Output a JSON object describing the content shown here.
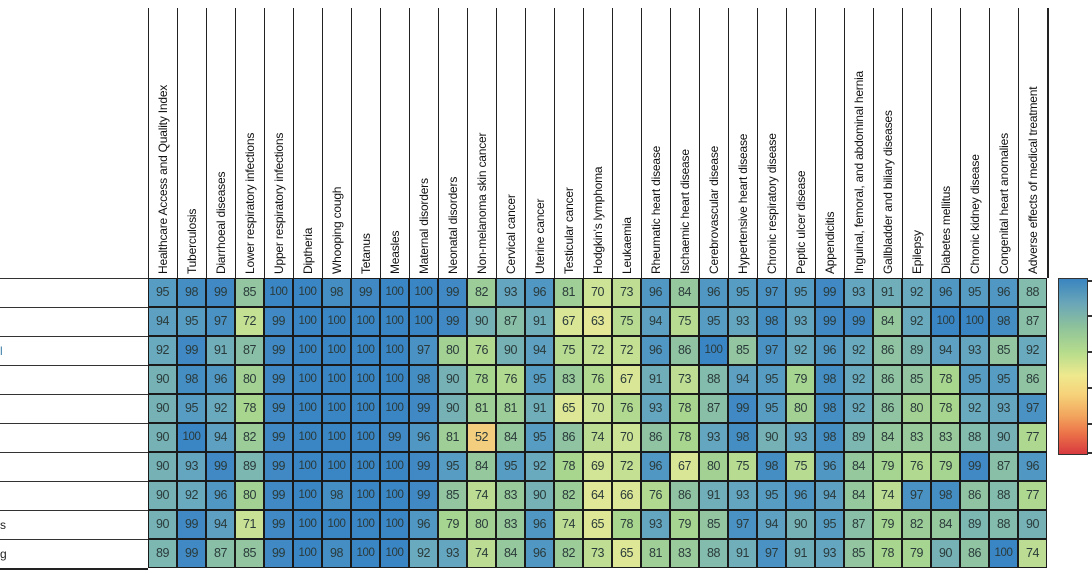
{
  "chart_data": {
    "type": "heatmap",
    "title": "",
    "columns": [
      "Healthcare Access and Quality Index",
      "Tuberculosis",
      "Diarrhoeal diseases",
      "Lower respiratory infections",
      "Upper respiratory infections",
      "Diptheria",
      "Whooping cough",
      "Tetanus",
      "Measles",
      "Maternal disorders",
      "Neonatal disorders",
      "Non-melanoma skin cancer",
      "Cervical cancer",
      "Uterine cancer",
      "Testicular cancer",
      "Hodgkin's lymphoma",
      "Leukaemia",
      "Rheumatic heart disease",
      "Ischaemic heart disease",
      "Cerebrovascular disease",
      "Hypertensive heart disease",
      "Chronic respiratory disease",
      "Peptic ulcer disease",
      "Appendicitis",
      "Inguinal, femoral, and abdominal hernia",
      "Gallbladder and biliary diseases",
      "Epilepsy",
      "Diabetes mellitus",
      "Chronic kidney disease",
      "Congenital heart anomalies",
      "Adverse effects of medical treatment"
    ],
    "rows": [
      "",
      "",
      "l",
      "",
      "",
      "",
      "",
      "",
      "s",
      "g"
    ],
    "values": [
      [
        95,
        98,
        99,
        85,
        100,
        100,
        98,
        99,
        100,
        100,
        99,
        82,
        93,
        96,
        81,
        70,
        73,
        96,
        84,
        96,
        95,
        97,
        95,
        99,
        93,
        91,
        92,
        96,
        95,
        96,
        88
      ],
      [
        94,
        95,
        97,
        72,
        99,
        100,
        100,
        100,
        100,
        100,
        99,
        90,
        87,
        91,
        67,
        63,
        75,
        94,
        75,
        95,
        93,
        98,
        93,
        99,
        99,
        84,
        92,
        100,
        100,
        98,
        87
      ],
      [
        92,
        99,
        91,
        87,
        99,
        100,
        100,
        100,
        100,
        97,
        80,
        76,
        90,
        94,
        75,
        72,
        72,
        96,
        86,
        100,
        85,
        97,
        92,
        96,
        92,
        86,
        89,
        94,
        93,
        85,
        92
      ],
      [
        90,
        98,
        96,
        80,
        99,
        100,
        100,
        100,
        100,
        98,
        90,
        78,
        76,
        95,
        83,
        76,
        67,
        91,
        73,
        88,
        94,
        95,
        79,
        98,
        92,
        86,
        85,
        78,
        95,
        95,
        86
      ],
      [
        90,
        95,
        92,
        78,
        99,
        100,
        100,
        100,
        100,
        99,
        90,
        81,
        81,
        91,
        65,
        70,
        76,
        93,
        78,
        87,
        99,
        95,
        80,
        98,
        92,
        86,
        80,
        78,
        92,
        93,
        97
      ],
      [
        90,
        100,
        94,
        82,
        99,
        100,
        100,
        100,
        99,
        96,
        81,
        52,
        84,
        95,
        86,
        74,
        70,
        86,
        78,
        93,
        98,
        90,
        93,
        98,
        89,
        84,
        83,
        83,
        88,
        90,
        77
      ],
      [
        90,
        93,
        99,
        89,
        99,
        100,
        100,
        100,
        100,
        99,
        95,
        84,
        95,
        92,
        78,
        69,
        72,
        96,
        67,
        80,
        75,
        98,
        75,
        96,
        84,
        79,
        76,
        79,
        99,
        87,
        96
      ],
      [
        90,
        92,
        96,
        80,
        99,
        100,
        98,
        100,
        100,
        99,
        85,
        74,
        83,
        90,
        82,
        64,
        66,
        76,
        86,
        91,
        93,
        95,
        96,
        94,
        84,
        74,
        97,
        98,
        86,
        88,
        77
      ],
      [
        90,
        99,
        94,
        71,
        99,
        100,
        100,
        100,
        100,
        96,
        79,
        80,
        83,
        96,
        74,
        65,
        78,
        93,
        79,
        85,
        97,
        94,
        90,
        95,
        87,
        79,
        82,
        84,
        89,
        88,
        90
      ],
      [
        89,
        99,
        87,
        85,
        99,
        100,
        98,
        100,
        100,
        92,
        93,
        74,
        84,
        96,
        82,
        73,
        65,
        81,
        83,
        88,
        91,
        97,
        91,
        93,
        85,
        78,
        79,
        90,
        86,
        100,
        74
      ]
    ],
    "colorscale": {
      "low_color": "#d83a3f",
      "mid_color": "#eee98e",
      "high_color": "#3a85c0",
      "legend_position": "right"
    },
    "xlabel": "",
    "ylabel": ""
  },
  "palette": {
    "stops": [
      {
        "v": 40,
        "c": "#e05a45"
      },
      {
        "v": 50,
        "c": "#f4c576"
      },
      {
        "v": 58,
        "c": "#efe895"
      },
      {
        "v": 68,
        "c": "#d6e696"
      },
      {
        "v": 78,
        "c": "#a9d68f"
      },
      {
        "v": 86,
        "c": "#8fc3a2"
      },
      {
        "v": 92,
        "c": "#6aaabf"
      },
      {
        "v": 97,
        "c": "#4b92c4"
      },
      {
        "v": 100,
        "c": "#3a85c4"
      }
    ]
  }
}
